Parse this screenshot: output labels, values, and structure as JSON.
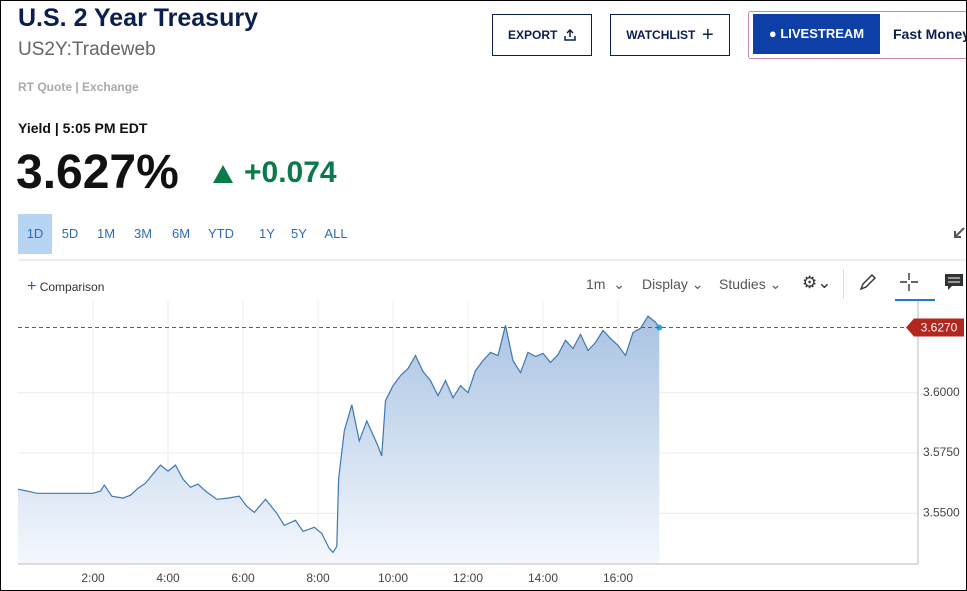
{
  "header": {
    "title": "U.S. 2 Year Treasury",
    "symbol": "US2Y:Tradeweb",
    "source": "RT Quote | Exchange"
  },
  "buttons": {
    "export": "EXPORT",
    "watchlist": "WATCHLIST",
    "livestream": "LIVESTREAM",
    "show": "Fast Money"
  },
  "quote": {
    "label": "Yield | 5:05 PM EDT",
    "price": "3.627%",
    "change": "+0.074"
  },
  "ranges": [
    "1D",
    "5D",
    "1M",
    "3M",
    "6M",
    "YTD",
    "1Y",
    "5Y",
    "ALL"
  ],
  "toolbar": {
    "comparison": "Comparison",
    "interval": "1m",
    "display": "Display",
    "studies": "Studies"
  },
  "chart_data": {
    "type": "area",
    "color": "#3f78b0",
    "x": [
      0,
      0.25,
      0.5,
      1,
      1.5,
      2,
      2.2,
      2.3,
      2.5,
      2.8,
      3,
      3.2,
      3.4,
      3.6,
      3.8,
      4,
      4.2,
      4.4,
      4.6,
      4.8,
      5,
      5.3,
      5.6,
      5.9,
      6.1,
      6.3,
      6.6,
      6.9,
      7.1,
      7.4,
      7.6,
      7.9,
      8.1,
      8.3,
      8.4,
      8.5,
      8.55,
      8.7,
      8.9,
      9.1,
      9.3,
      9.6,
      9.7,
      9.8,
      10,
      10.2,
      10.4,
      10.6,
      10.8,
      11,
      11.2,
      11.4,
      11.6,
      11.8,
      12,
      12.2,
      12.4,
      12.6,
      12.8,
      13,
      13.2,
      13.4,
      13.6,
      13.8,
      14,
      14.2,
      14.4,
      14.6,
      14.8,
      15,
      15.2,
      15.4,
      15.6,
      15.8,
      16,
      16.2,
      16.4,
      16.6,
      16.8,
      17,
      17.1
    ],
    "values": [
      3.56,
      3.5592,
      3.5583,
      3.5583,
      3.5583,
      3.5583,
      3.5592,
      3.5617,
      3.5571,
      3.5563,
      3.5575,
      3.5604,
      3.5625,
      3.5663,
      3.57,
      3.5675,
      3.57,
      3.5642,
      3.5608,
      3.5621,
      3.5592,
      3.5558,
      3.5563,
      3.5571,
      3.5529,
      3.5504,
      3.5558,
      3.55,
      3.545,
      3.5471,
      3.5425,
      3.5442,
      3.5417,
      3.5354,
      3.5338,
      3.5363,
      3.5642,
      3.5842,
      3.595,
      3.58,
      3.5883,
      3.5779,
      3.5738,
      3.5967,
      3.6029,
      3.6071,
      3.61,
      3.6154,
      3.6088,
      3.605,
      3.5988,
      3.605,
      3.5979,
      3.6029,
      3.6,
      3.6092,
      3.6133,
      3.6167,
      3.6154,
      3.6279,
      3.6133,
      3.6083,
      3.6167,
      3.615,
      3.6163,
      3.6125,
      3.6158,
      3.6217,
      3.6183,
      3.6242,
      3.6175,
      3.6208,
      3.6258,
      3.6225,
      3.6196,
      3.6154,
      3.625,
      3.6267,
      3.6317,
      3.6292,
      3.627
    ],
    "xlim": [
      0,
      24
    ],
    "ylim": [
      3.529,
      3.638
    ],
    "xticks": [
      {
        "value": 2,
        "label": "2:00"
      },
      {
        "value": 4,
        "label": "4:00"
      },
      {
        "value": 6,
        "label": "6:00"
      },
      {
        "value": 8,
        "label": "8:00"
      },
      {
        "value": 10,
        "label": "10:00"
      },
      {
        "value": 12,
        "label": "12:00"
      },
      {
        "value": 14,
        "label": "14:00"
      },
      {
        "value": 16,
        "label": "16:00"
      }
    ],
    "yticks": [
      {
        "value": 3.55,
        "label": "3.5500"
      },
      {
        "value": 3.575,
        "label": "3.5750"
      },
      {
        "value": 3.6,
        "label": "3.6000"
      }
    ],
    "grid": true,
    "last_price": {
      "value": 3.627,
      "label": "3.6270"
    }
  }
}
